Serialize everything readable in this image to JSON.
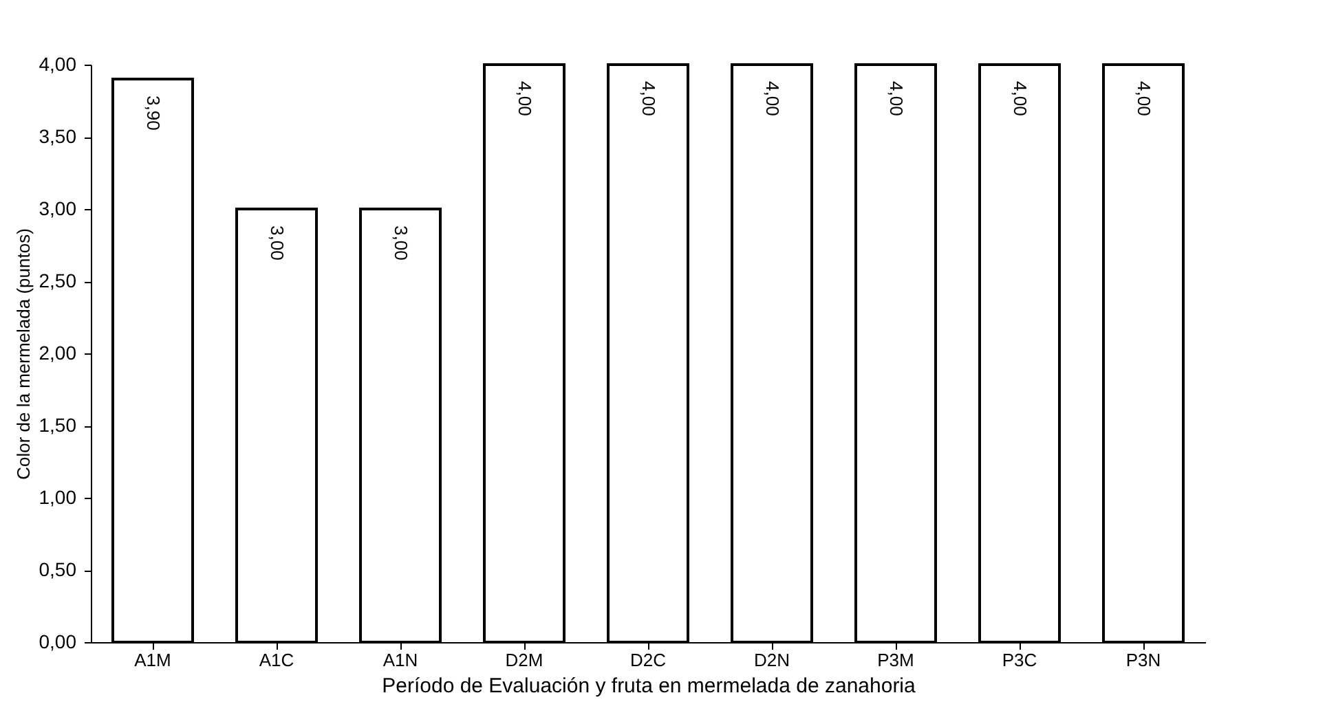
{
  "chart_data": {
    "type": "bar",
    "xlabel": "Período de Evaluación y fruta en mermelada de zanahoria",
    "ylabel": "Color de la mermelada (puntos)",
    "categories": [
      "A1M",
      "A1C",
      "A1N",
      "D2M",
      "D2C",
      "D2N",
      "P3M",
      "P3C",
      "P3N"
    ],
    "values": [
      3.9,
      3.0,
      3.0,
      4.0,
      4.0,
      4.0,
      4.0,
      4.0,
      4.0
    ],
    "value_labels": [
      "3,90",
      "3,00",
      "3,00",
      "4,00",
      "4,00",
      "4,00",
      "4,00",
      "4,00",
      "4,00"
    ],
    "color": "#ffffff",
    "ylim": [
      0,
      4
    ],
    "yticks": [
      {
        "value": 0,
        "label": "0,00"
      },
      {
        "value": 0.5,
        "label": "0,50"
      },
      {
        "value": 1,
        "label": "1,00"
      },
      {
        "value": 1.5,
        "label": "1,50"
      },
      {
        "value": 2,
        "label": "2,00"
      },
      {
        "value": 2.5,
        "label": "2,50"
      },
      {
        "value": 3,
        "label": "3,00"
      },
      {
        "value": 3.5,
        "label": "3,50"
      },
      {
        "value": 4,
        "label": "4,00"
      }
    ],
    "grid": false
  }
}
